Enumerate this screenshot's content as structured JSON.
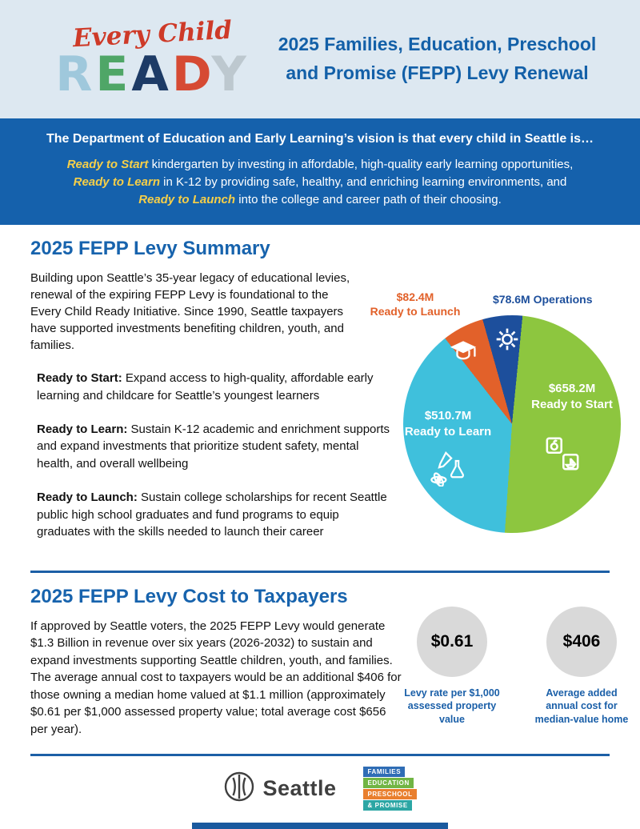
{
  "header": {
    "script_word": "Every Child",
    "ready_letters": [
      {
        "ch": "R",
        "color": "#9fc8dc"
      },
      {
        "ch": "E",
        "color": "#4fa667"
      },
      {
        "ch": "A",
        "color": "#1d3b66"
      },
      {
        "ch": "D",
        "color": "#d64a33"
      },
      {
        "ch": "Y",
        "color": "#bdc8cf"
      }
    ],
    "title_line1": "2025 Families, Education, Preschool",
    "title_line2": "and Promise (FEPP) Levy Renewal"
  },
  "banner": {
    "heading": "The Department of Education and Early Learning’s vision is that every child in Seattle is…",
    "lines": [
      {
        "em": "Ready to Start",
        "rest": " kindergarten by investing in affordable, high-quality early learning opportunities,"
      },
      {
        "em": "Ready to Learn",
        "rest": " in K-12 by providing safe, healthy, and enriching learning environments, and"
      },
      {
        "em": "Ready to Launch",
        "rest": " into the college and career path of their choosing."
      }
    ]
  },
  "summary": {
    "title": "2025 FEPP Levy Summary",
    "intro": "Building upon Seattle’s 35-year legacy of educational levies, renewal of the expiring FEPP Levy is foundational to the Every Child Ready Initiative. Since 1990, Seattle taxpayers have supported investments benefiting children, youth, and families.",
    "items": [
      {
        "label": "Ready to Start:",
        "text": " Expand access to high-quality, affordable early learning and childcare for Seattle’s youngest learners"
      },
      {
        "label": "Ready to Learn:",
        "text": " Sustain K-12 academic and enrichment supports and expand investments that prioritize student safety, mental health, and overall wellbeing"
      },
      {
        "label": "Ready to Launch:",
        "text": " Sustain college scholarships for recent Seattle public high school graduates and fund programs to equip graduates with the skills needed to launch their career"
      }
    ]
  },
  "chart_data": {
    "type": "pie",
    "title": "2025 FEPP Levy allocation",
    "unit": "USD millions",
    "slices": [
      {
        "label": "Ready to Start",
        "value": 658.2,
        "value_label": "$658.2M",
        "color": "#8dc63f",
        "icon": "building-blocks-icon"
      },
      {
        "label": "Ready to Learn",
        "value": 510.7,
        "value_label": "$510.7M",
        "color": "#3fc0dc",
        "icon": "arts-science-icon"
      },
      {
        "label": "Ready to Launch",
        "value": 82.4,
        "value_label": "$82.4M",
        "color": "#e2612a",
        "icon": "graduation-cap-icon"
      },
      {
        "label": "Operations",
        "value": 78.6,
        "value_label": "$78.6M",
        "color": "#1d4f9c",
        "icon": "gear-icon"
      }
    ],
    "start_angle": -38,
    "order": [
      2,
      3,
      0,
      1
    ],
    "legend_position": "labels on and beside slices"
  },
  "cost": {
    "title": "2025 FEPP Levy Cost to Taxpayers",
    "body": "If approved by Seattle voters, the 2025 FEPP Levy would generate $1.3 Billion in revenue over six years (2026-2032) to sustain and expand investments supporting Seattle children, youth, and families. The average annual cost to taxpayers would be an additional $406 for those owning a median home valued at $1.1 million (approximately $0.61 per $1,000 assessed property value; total average cost $656 per year).",
    "stats": [
      {
        "value": "$0.61",
        "caption": "Levy rate per $1,000 assessed property value"
      },
      {
        "value": "$406",
        "caption": "Average added annual cost for median-value home"
      }
    ]
  },
  "footer": {
    "seattle_wordmark": "Seattle",
    "fepp_rows": [
      {
        "text": "FAMILIES",
        "color": "#2f6db5"
      },
      {
        "text": "EDUCATION",
        "color": "#71b544"
      },
      {
        "text": "PRESCHOOL",
        "color": "#e97f2e"
      },
      {
        "text": "& PROMISE",
        "color": "#2ca6a4"
      }
    ]
  },
  "colors": {
    "header_bg": "#dde8f1",
    "banner_bg": "#1561ac",
    "heading_blue": "#1763ad",
    "title_blue": "#1360a8",
    "highlight_yellow": "#f6cf48",
    "script_red": "#ce3a28",
    "divider_blue": "#1c5fa6",
    "stat_circle_grey": "#d9d9d9",
    "bottom_bar_blue": "#19599e"
  }
}
